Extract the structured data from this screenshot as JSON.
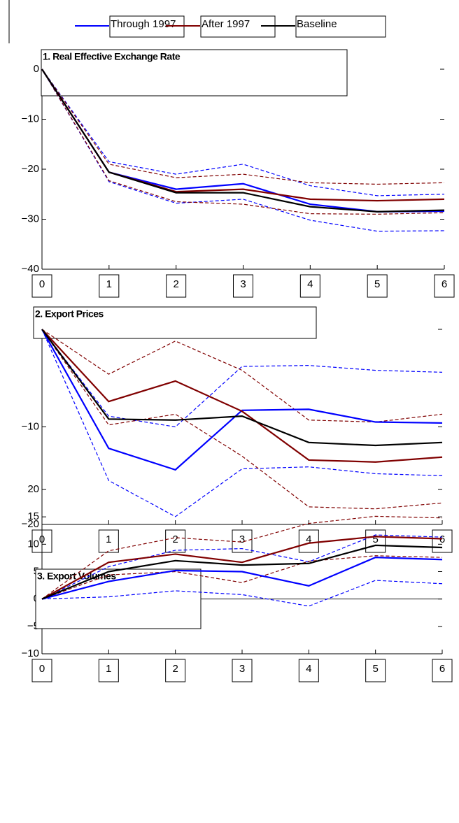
{
  "legend": [
    {
      "name": "Through 1997",
      "color": "#0000ff"
    },
    {
      "name": "After 1997",
      "color": "#800000"
    },
    {
      "name": "Baseline",
      "color": "#000000"
    }
  ],
  "chart_data": [
    {
      "type": "line",
      "title": "1. Real Effective Exchange Rate",
      "x": [
        0,
        1,
        2,
        3,
        4,
        5,
        6
      ],
      "xlim": [
        0,
        6
      ],
      "xticks": [
        0,
        1,
        2,
        3,
        4,
        5,
        6
      ],
      "ylim": [
        -40,
        0
      ],
      "yticks": [
        0,
        -10,
        -20,
        -30,
        -40
      ],
      "series": [
        {
          "color": "#0000ff",
          "values": [
            0,
            -20.6,
            -24,
            -22.9,
            -27,
            -28.5,
            -28.4
          ],
          "upper": [
            0,
            -18.5,
            -21,
            -19,
            -23.3,
            -25.3,
            -25
          ],
          "lower": [
            0,
            -22.5,
            -26.8,
            -26,
            -30.2,
            -32.4,
            -32.3
          ]
        },
        {
          "color": "#800000",
          "values": [
            0,
            -20.6,
            -24.5,
            -24,
            -26,
            -26.3,
            -26
          ],
          "upper": [
            0,
            -19,
            -21.7,
            -21,
            -22.7,
            -23,
            -22.7
          ],
          "lower": [
            0,
            -22.3,
            -26.5,
            -27,
            -28.9,
            -29,
            -28.7
          ]
        },
        {
          "color": "#000000",
          "values": [
            0,
            -20.6,
            -24.7,
            -24.7,
            -27.5,
            -28.5,
            -28.2
          ]
        }
      ]
    },
    {
      "type": "line",
      "title": "2. Export Prices",
      "x": [
        0,
        1,
        2,
        3,
        4,
        5,
        6
      ],
      "xlim": [
        0,
        6
      ],
      "xticks": [
        0,
        1,
        2,
        3,
        4,
        5,
        6
      ],
      "ylim": [
        -20,
        0
      ],
      "yticks": [
        0,
        -10,
        -20
      ],
      "series": [
        {
          "color": "#0000ff",
          "values": [
            0,
            -12.2,
            -14.4,
            -8.3,
            -8.2,
            -9.5,
            -9.6
          ],
          "upper": [
            0,
            -8.9,
            -10,
            -3.8,
            -3.7,
            -4.2,
            -4.4
          ],
          "lower": [
            0,
            -15.5,
            -19.2,
            -14.3,
            -14.1,
            -14.8,
            -15
          ]
        },
        {
          "color": "#800000",
          "values": [
            0,
            -7.4,
            -5.3,
            -8.4,
            -13.4,
            -13.6,
            -13.1
          ],
          "upper": [
            0,
            -4.6,
            -1.2,
            -4.2,
            -9.3,
            -9.5,
            -8.7
          ],
          "lower": [
            0,
            -9.8,
            -8.7,
            -13,
            -18.2,
            -18.4,
            -17.8
          ]
        },
        {
          "color": "#000000",
          "values": [
            0,
            -9.2,
            -9.3,
            -8.9,
            -11.6,
            -11.9,
            -11.6
          ]
        }
      ]
    },
    {
      "type": "line",
      "title": "3. Export Volumes",
      "x": [
        0,
        1,
        2,
        3,
        4,
        5,
        6
      ],
      "xlim": [
        0,
        6
      ],
      "xticks": [
        0,
        1,
        2,
        3,
        4,
        5,
        6
      ],
      "ylim": [
        -10,
        20
      ],
      "yticks": [
        20,
        15,
        10,
        5,
        0,
        -5,
        -10
      ],
      "series": [
        {
          "color": "#0000ff",
          "values": [
            0,
            3.2,
            5.2,
            5,
            2.4,
            7.6,
            7.2
          ],
          "upper": [
            0,
            5.9,
            8.9,
            9.2,
            6.8,
            11.7,
            11.3
          ],
          "lower": [
            0,
            0.4,
            1.5,
            0.8,
            -1.3,
            3.4,
            2.8
          ]
        },
        {
          "color": "#800000",
          "values": [
            0,
            6.7,
            8.2,
            6.7,
            10.2,
            11.4,
            11
          ],
          "upper": [
            0,
            8.8,
            11.2,
            10.4,
            13.8,
            15.1,
            14.8
          ],
          "lower": [
            0,
            4.4,
            5,
            3,
            6.9,
            7.9,
            7.6
          ]
        },
        {
          "color": "#000000",
          "values": [
            0,
            5,
            7,
            6.2,
            6.5,
            9.8,
            9.4
          ]
        }
      ]
    }
  ]
}
